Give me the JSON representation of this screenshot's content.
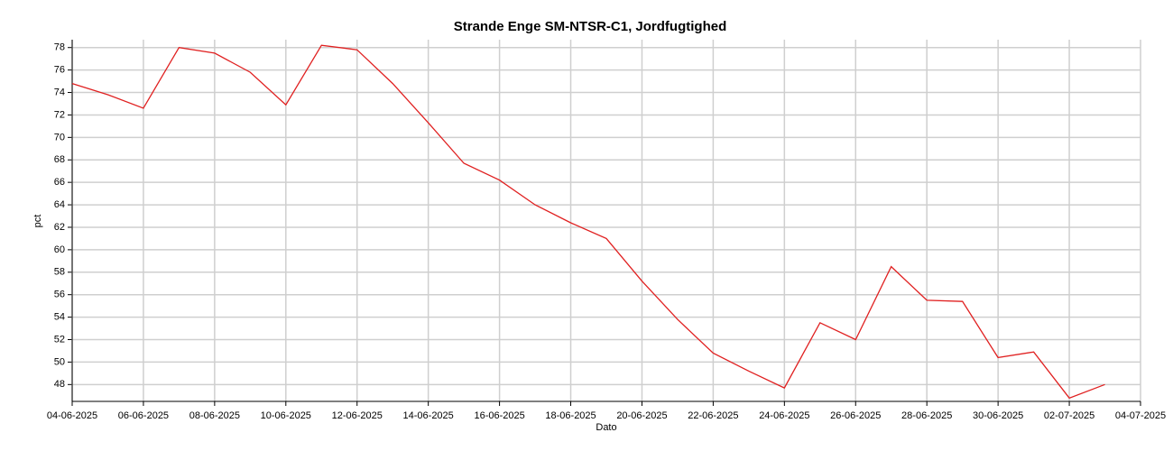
{
  "chart_data": {
    "type": "line",
    "title": "Strande Enge SM-NTSR-C1, Jordfugtighed",
    "x_label": "Dato",
    "y_label": "pct",
    "x": [
      "04-06-2025",
      "05-06-2025",
      "06-06-2025",
      "07-06-2025",
      "08-06-2025",
      "09-06-2025",
      "10-06-2025",
      "11-06-2025",
      "12-06-2025",
      "13-06-2025",
      "14-06-2025",
      "15-06-2025",
      "16-06-2025",
      "17-06-2025",
      "18-06-2025",
      "19-06-2025",
      "20-06-2025",
      "21-06-2025",
      "22-06-2025",
      "23-06-2025",
      "24-06-2025",
      "25-06-2025",
      "26-06-2025",
      "27-06-2025",
      "28-06-2025",
      "29-06-2025",
      "30-06-2025",
      "01-07-2025",
      "02-07-2025",
      "03-07-2025"
    ],
    "series": [
      {
        "name": "Jordfugtighed",
        "color": "#e02020",
        "values": [
          74.8,
          73.8,
          72.6,
          78.0,
          77.5,
          75.8,
          72.9,
          78.2,
          77.8,
          74.8,
          71.3,
          67.7,
          66.2,
          64.0,
          62.4,
          61.0,
          57.2,
          53.8,
          50.8,
          49.2,
          47.7,
          53.5,
          52.0,
          58.5,
          55.5,
          55.4,
          50.4,
          50.9,
          46.8,
          48.0
        ]
      }
    ],
    "xlim": [
      "04-06-2025",
      "04-07-2025"
    ],
    "xticks": [
      "04-06-2025",
      "06-06-2025",
      "08-06-2025",
      "10-06-2025",
      "12-06-2025",
      "14-06-2025",
      "16-06-2025",
      "18-06-2025",
      "20-06-2025",
      "22-06-2025",
      "24-06-2025",
      "26-06-2025",
      "28-06-2025",
      "30-06-2025",
      "02-07-2025",
      "04-07-2025"
    ],
    "ylim": [
      46.5,
      78.7
    ],
    "yticks": [
      48,
      50,
      52,
      54,
      56,
      58,
      60,
      62,
      64,
      66,
      68,
      70,
      72,
      74,
      76,
      78
    ],
    "grid": true
  }
}
